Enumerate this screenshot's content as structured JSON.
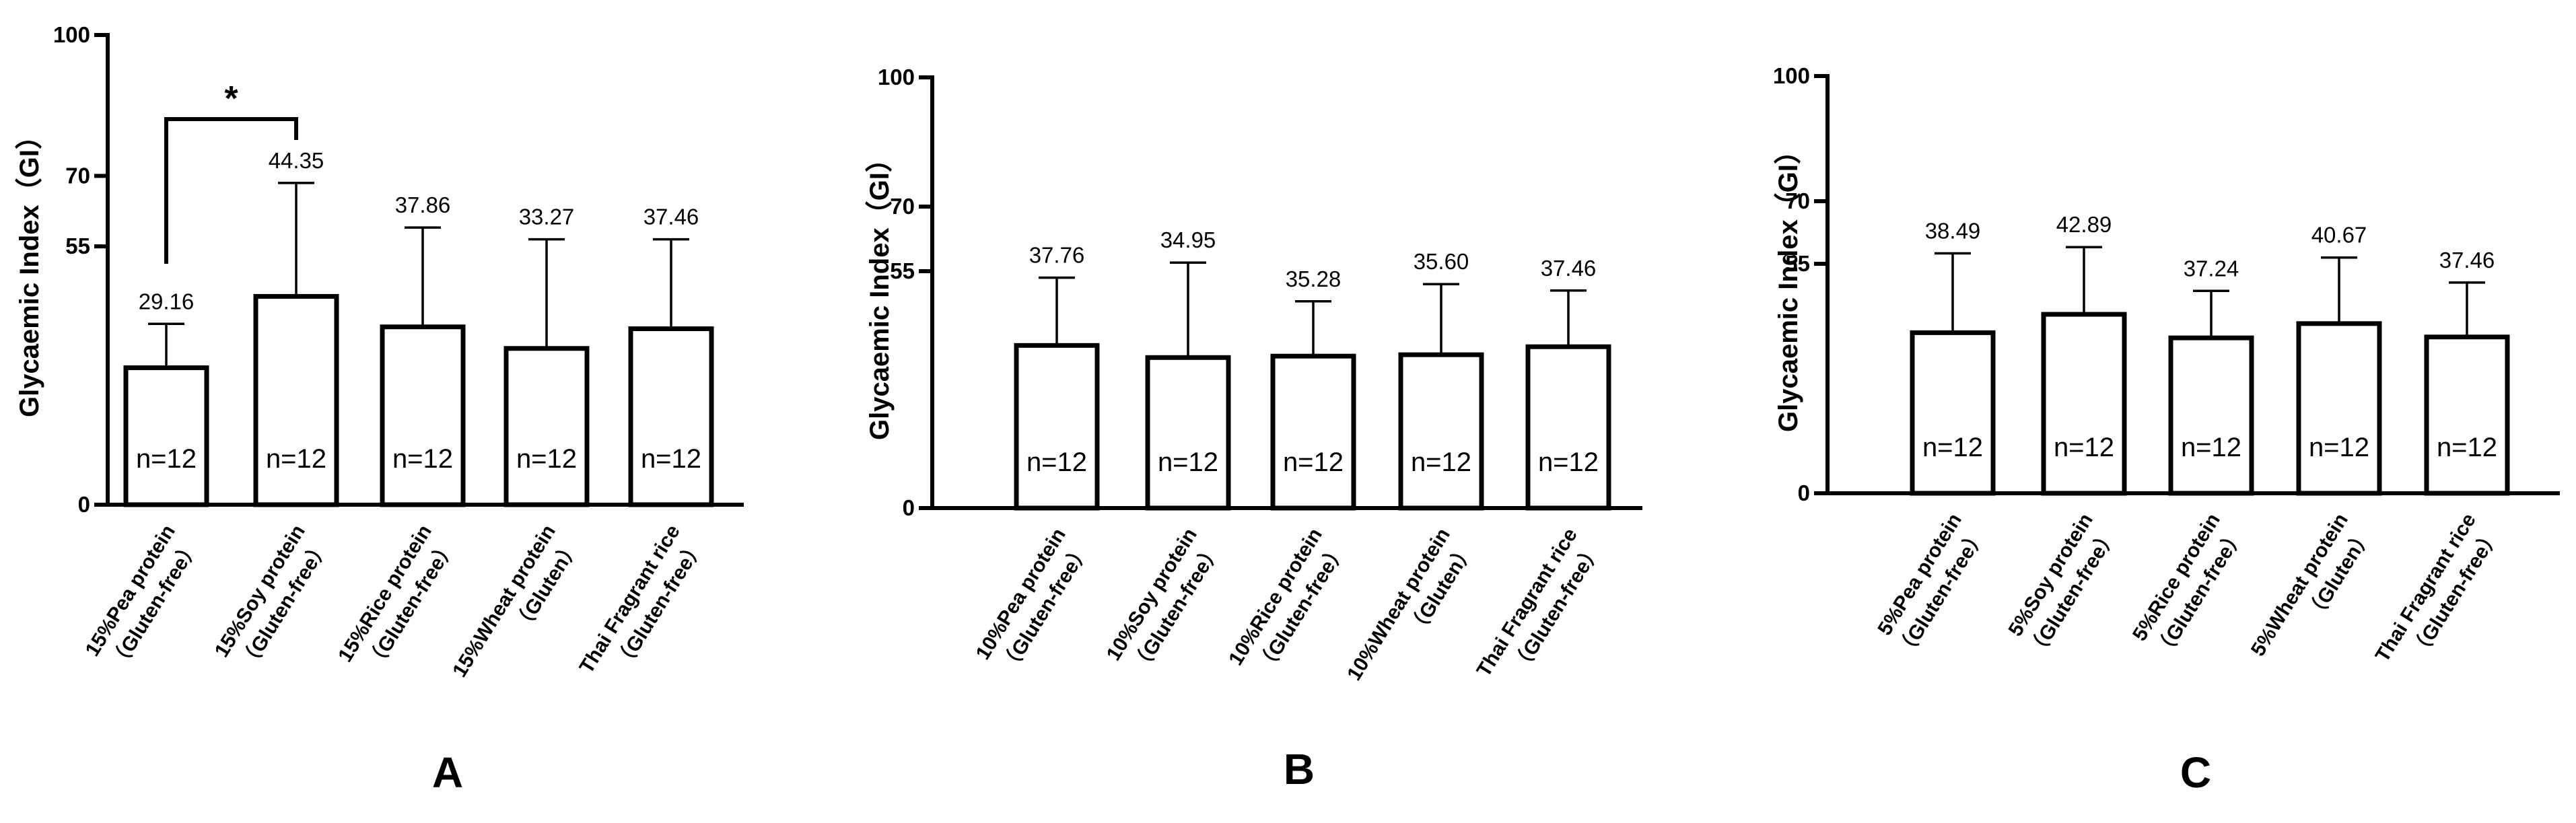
{
  "chart_data": [
    {
      "panel": "A",
      "type": "bar",
      "ylabel": "Glycaemic Index（GI）",
      "ylim": [
        0,
        100
      ],
      "yticks": [
        0,
        55,
        70,
        100
      ],
      "categories": [
        [
          "15%Pea protein",
          "（Gluten-free）"
        ],
        [
          "15%Soy protein",
          "（Gluten-free）"
        ],
        [
          "15%Rice protein",
          "（Gluten-free）"
        ],
        [
          "15%Wheat protein",
          "（Gluten）"
        ],
        [
          "Thai Fragrant rice",
          "（Gluten-free）"
        ]
      ],
      "values": [
        29.16,
        44.35,
        37.86,
        33.27,
        37.46
      ],
      "value_labels": [
        "29.16",
        "44.35",
        "37.86",
        "33.27",
        "37.46"
      ],
      "error_upper": [
        38.5,
        68.5,
        59.0,
        56.5,
        56.5
      ],
      "n_labels": [
        "n=12",
        "n=12",
        "n=12",
        "n=12",
        "n=12"
      ],
      "significance": {
        "from": 0,
        "to": 1,
        "label": "*"
      }
    },
    {
      "panel": "B",
      "type": "bar",
      "ylabel": "Glycaemic Index（GI）",
      "ylim": [
        0,
        100
      ],
      "yticks": [
        0,
        55,
        70,
        100
      ],
      "categories": [
        [
          "10%Pea protein",
          "（Gluten-free）"
        ],
        [
          "10%Soy protein",
          "（Gluten-free）"
        ],
        [
          "10%Rice protein",
          "（Gluten-free）"
        ],
        [
          "10%Wheat protein",
          "（Gluten）"
        ],
        [
          "Thai Fragrant rice",
          "（Gluten-free）"
        ]
      ],
      "values": [
        37.76,
        34.95,
        35.28,
        35.6,
        37.46
      ],
      "value_labels": [
        "37.76",
        "34.95",
        "35.28",
        "35.60",
        "37.46"
      ],
      "error_upper": [
        53.5,
        57.0,
        48.0,
        52.0,
        50.5
      ],
      "n_labels": [
        "n=12",
        "n=12",
        "n=12",
        "n=12",
        "n=12"
      ]
    },
    {
      "panel": "C",
      "type": "bar",
      "ylabel": "Glycaemic Index（GI）",
      "ylim": [
        0,
        100
      ],
      "yticks": [
        0,
        55,
        70,
        100
      ],
      "categories": [
        [
          "5%Pea protein",
          "（Gluten-free）"
        ],
        [
          "5%Soy protein",
          "（Gluten-free）"
        ],
        [
          "5%Rice protein",
          "（Gluten-free）"
        ],
        [
          "5%Wheat protein",
          "（Gluten）"
        ],
        [
          "Thai Fragrant rice",
          "（Gluten-free）"
        ]
      ],
      "values": [
        38.49,
        42.89,
        37.24,
        40.67,
        37.46
      ],
      "value_labels": [
        "38.49",
        "42.89",
        "37.24",
        "40.67",
        "37.46"
      ],
      "error_upper": [
        57.5,
        59.0,
        48.5,
        56.5,
        50.5
      ],
      "n_labels": [
        "n=12",
        "n=12",
        "n=12",
        "n=12",
        "n=12"
      ]
    }
  ]
}
